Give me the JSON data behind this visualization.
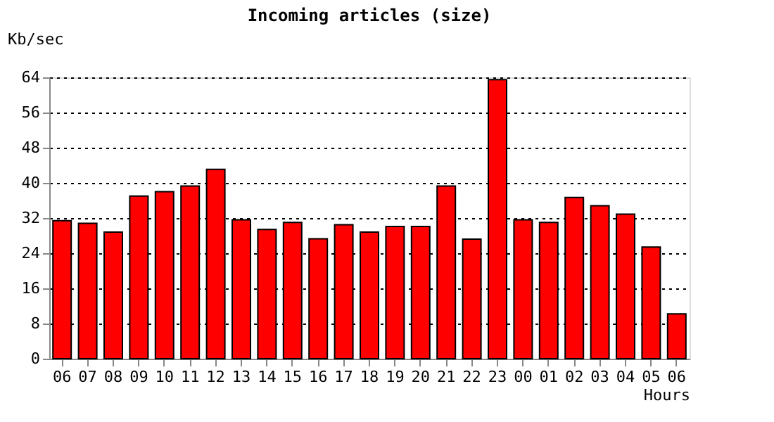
{
  "chart_data": {
    "type": "bar",
    "title": "Incoming articles (size)",
    "ylabel": "Kb/sec",
    "xlabel": "Hours",
    "categories": [
      "06",
      "07",
      "08",
      "09",
      "10",
      "11",
      "12",
      "13",
      "14",
      "15",
      "16",
      "17",
      "18",
      "19",
      "20",
      "21",
      "22",
      "23",
      "00",
      "01",
      "02",
      "03",
      "04",
      "05",
      "06"
    ],
    "values": [
      31.4,
      30.8,
      28.8,
      37.0,
      38.0,
      39.3,
      43.1,
      31.6,
      29.4,
      31.0,
      27.3,
      30.5,
      28.8,
      30.1,
      30.1,
      39.3,
      27.2,
      63.5,
      31.6,
      31.0,
      36.7,
      34.8,
      32.9,
      25.4,
      10.2
    ],
    "color": "#ff0000",
    "ylim": [
      0,
      64
    ],
    "yticks": [
      0,
      8,
      16,
      24,
      32,
      40,
      48,
      56,
      64
    ],
    "grid": "y"
  }
}
